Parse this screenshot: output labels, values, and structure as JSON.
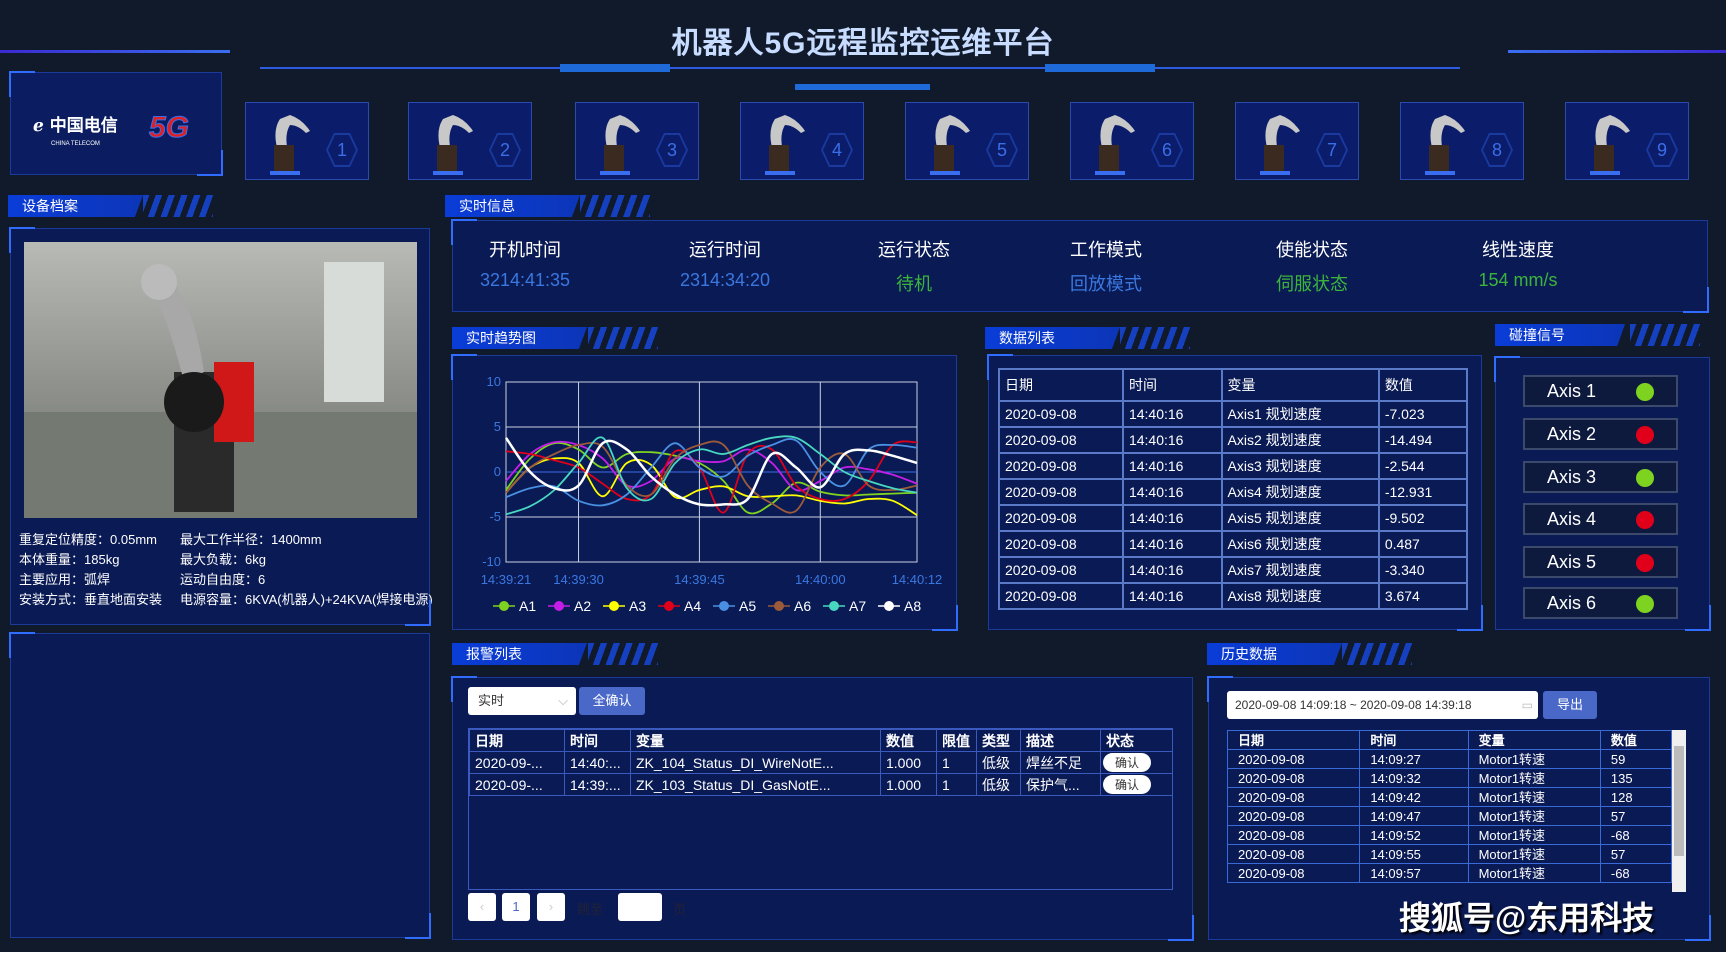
{
  "header": {
    "title": "机器人5G远程监控运维平台",
    "logo_text": "中国电信 CHINA TELECOM 5G"
  },
  "robots": [
    "1",
    "2",
    "3",
    "4",
    "5",
    "6",
    "7",
    "8",
    "9"
  ],
  "device": {
    "section": "设备档案",
    "specs": [
      {
        "k": "重复定位精度：",
        "v": "0.05mm"
      },
      {
        "k": "最大工作半径：",
        "v": "1400mm"
      },
      {
        "k": "本体重量：",
        "v": "185kg"
      },
      {
        "k": "最大负载：",
        "v": "6kg"
      },
      {
        "k": "主要应用：",
        "v": "弧焊"
      },
      {
        "k": "运动自由度：",
        "v": "6"
      },
      {
        "k": "安装方式：",
        "v": "垂直地面安装"
      },
      {
        "k": "电源容量：",
        "v": "6KVA(机器人)+24KVA(焊接电源)"
      }
    ]
  },
  "realtime": {
    "section": "实时信息",
    "items": [
      {
        "label": "开机时间",
        "value": "3214:41:35",
        "color": "#3a78e0"
      },
      {
        "label": "运行时间",
        "value": "2314:34:20",
        "color": "#3a78e0"
      },
      {
        "label": "运行状态",
        "value": "待机",
        "color": "#3cb43c"
      },
      {
        "label": "工作模式",
        "value": "回放模式",
        "color": "#3a78e0"
      },
      {
        "label": "使能状态",
        "value": "伺服状态",
        "color": "#3cb43c"
      },
      {
        "label": "线性速度",
        "value": "154  mm/s",
        "color": "#3cb43c"
      }
    ]
  },
  "trend": {
    "section": "实时趋势图"
  },
  "chart_data": {
    "type": "line",
    "ylim": [
      -10,
      10
    ],
    "yticks": [
      "10",
      "5",
      "0",
      "-5",
      "-10"
    ],
    "xticks": [
      "14:39:21",
      "14:39:30",
      "14:39:45",
      "14:40:00",
      "14:40:12"
    ],
    "x": [
      "14:39:21",
      "14:39:24",
      "14:39:27",
      "14:39:30",
      "14:39:33",
      "14:39:36",
      "14:39:39",
      "14:39:42",
      "14:39:45",
      "14:39:48",
      "14:39:51",
      "14:39:54",
      "14:39:57",
      "14:40:00",
      "14:40:03",
      "14:40:06",
      "14:40:09",
      "14:40:12"
    ],
    "legend": "bottom",
    "grid": true,
    "series": [
      {
        "name": "A1",
        "color": "#7ed321",
        "values": [
          -2,
          1.5,
          3.2,
          2.5,
          0.5,
          2,
          2.2,
          1.8,
          1,
          -1,
          -4.5,
          -3.5,
          -1.2,
          -2.2,
          -2.6,
          -2.5,
          -2.4,
          -2.3
        ]
      },
      {
        "name": "A2",
        "color": "#c41ee6",
        "values": [
          -1,
          2,
          3.3,
          3,
          1.5,
          -1.5,
          -1,
          1.5,
          1.2,
          1.2,
          2.5,
          1,
          -2,
          -1,
          0.5,
          0.3,
          -0.3,
          -1.3
        ]
      },
      {
        "name": "A3",
        "color": "#ffff00",
        "values": [
          -2.3,
          0.5,
          1.5,
          1,
          -2.7,
          1,
          0.8,
          -2.8,
          -2,
          -1.6,
          -2.7,
          -2.7,
          -2.6,
          -3.2,
          -3.5,
          -3,
          -3.2,
          -4.8
        ]
      },
      {
        "name": "A4",
        "color": "#e0001a",
        "values": [
          2.3,
          2,
          1.3,
          0.5,
          -1.3,
          -3,
          -2.5,
          2.3,
          0.5,
          -4.5,
          2,
          2.5,
          -1.5,
          -3,
          -3,
          -1,
          3,
          3.3
        ]
      },
      {
        "name": "A5",
        "color": "#4a90e2",
        "values": [
          -2.8,
          -1.8,
          -1.6,
          -3.2,
          -3.7,
          -2.5,
          0.5,
          3.2,
          0.5,
          -0.5,
          1.8,
          3,
          3.5,
          0,
          -1.5,
          2.5,
          3,
          2.7
        ]
      },
      {
        "name": "A6",
        "color": "#9b5b3a",
        "values": [
          -2.3,
          0.5,
          2,
          3,
          2.8,
          -1.5,
          -2.5,
          1.5,
          3,
          3,
          -1.5,
          -3.5,
          -4.3,
          0.5,
          2,
          -1.5,
          -2,
          -1.5
        ]
      },
      {
        "name": "A7",
        "color": "#48d8c0",
        "values": [
          -4.7,
          -3.8,
          -2,
          1,
          3.8,
          -1.8,
          -3,
          1,
          2.5,
          2,
          3,
          3.8,
          3.8,
          2,
          0,
          -1,
          -1.8,
          -2.3
        ]
      },
      {
        "name": "A8",
        "color": "#ffffff",
        "values": [
          3.8,
          0,
          -1.8,
          -1.5,
          3.2,
          2.5,
          -0.5,
          -2.5,
          -3.6,
          -3.6,
          -3,
          2,
          0.5,
          -1.7,
          2,
          2.4,
          1.8,
          1
        ]
      }
    ]
  },
  "datalist": {
    "section": "数据列表",
    "headers": [
      "日期",
      "时间",
      "变量",
      "数值"
    ],
    "rows": [
      [
        "2020-09-08",
        "14:40:16",
        "Axis1 规划速度",
        "-7.023"
      ],
      [
        "2020-09-08",
        "14:40:16",
        "Axis2 规划速度",
        "-14.494"
      ],
      [
        "2020-09-08",
        "14:40:16",
        "Axis3 规划速度",
        "-2.544"
      ],
      [
        "2020-09-08",
        "14:40:16",
        "Axis4 规划速度",
        "-12.931"
      ],
      [
        "2020-09-08",
        "14:40:16",
        "Axis5 规划速度",
        "-9.502"
      ],
      [
        "2020-09-08",
        "14:40:16",
        "Axis6 规划速度",
        "0.487"
      ],
      [
        "2020-09-08",
        "14:40:16",
        "Axis7 规划速度",
        "-3.340"
      ],
      [
        "2020-09-08",
        "14:40:16",
        "Axis8 规划速度",
        "3.674"
      ]
    ]
  },
  "collision": {
    "section": "碰撞信号",
    "items": [
      {
        "label": "Axis 1",
        "color": "#7ed321"
      },
      {
        "label": "Axis 2",
        "color": "#e0001a"
      },
      {
        "label": "Axis 3",
        "color": "#7ed321"
      },
      {
        "label": "Axis 4",
        "color": "#e0001a"
      },
      {
        "label": "Axis 5",
        "color": "#e0001a"
      },
      {
        "label": "Axis 6",
        "color": "#7ed321"
      }
    ]
  },
  "alarm": {
    "section": "报警列表",
    "select": "实时",
    "confirm_all": "全确认",
    "headers": [
      "日期",
      "时间",
      "变量",
      "数值",
      "限值",
      "类型",
      "描述",
      "状态"
    ],
    "rows": [
      [
        "2020-09-...",
        "14:40:...",
        "ZK_104_Status_DI_WireNotE...",
        "1.000",
        "1",
        "低级",
        "焊丝不足",
        "确认"
      ],
      [
        "2020-09-...",
        "14:39:...",
        "ZK_103_Status_DI_GasNotE...",
        "1.000",
        "1",
        "低级",
        "保护气...",
        "确认"
      ]
    ],
    "pager": {
      "prev": "‹",
      "page": "1",
      "next": "›",
      "goto": "跳至",
      "unit": "页"
    }
  },
  "history": {
    "section": "历史数据",
    "range": "2020-09-08 14:09:18  ~  2020-09-08 14:39:18",
    "export": "导出",
    "headers": [
      "日期",
      "时间",
      "变量",
      "数值"
    ],
    "rows": [
      [
        "2020-09-08",
        "14:09:27",
        "Motor1转速",
        "59"
      ],
      [
        "2020-09-08",
        "14:09:32",
        "Motor1转速",
        "135"
      ],
      [
        "2020-09-08",
        "14:09:42",
        "Motor1转速",
        "128"
      ],
      [
        "2020-09-08",
        "14:09:47",
        "Motor1转速",
        "57"
      ],
      [
        "2020-09-08",
        "14:09:52",
        "Motor1转速",
        "-68"
      ],
      [
        "2020-09-08",
        "14:09:55",
        "Motor1转速",
        "57"
      ],
      [
        "2020-09-08",
        "14:09:57",
        "Motor1转速",
        "-68"
      ]
    ]
  },
  "watermark": "搜狐号@东用科技"
}
